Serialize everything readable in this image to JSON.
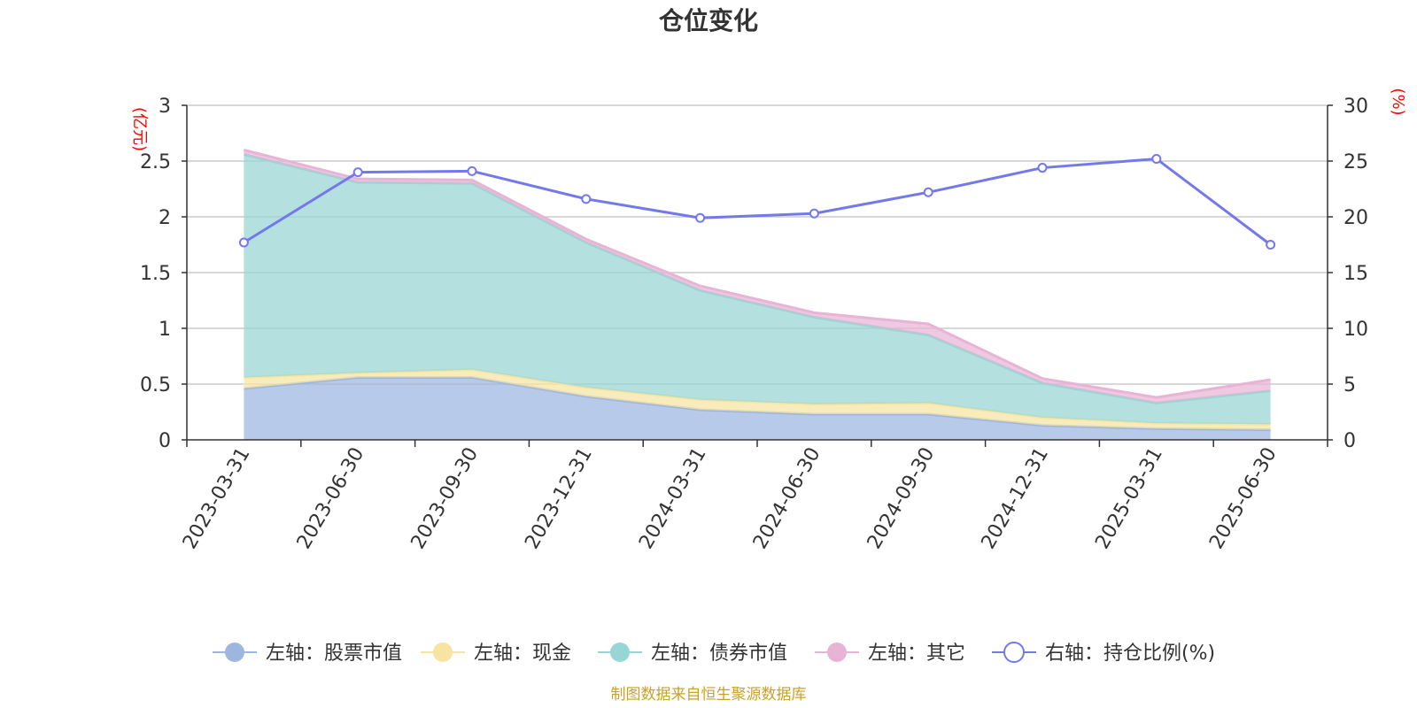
{
  "chart_data": {
    "type": "area",
    "title": "仓位变化",
    "left_axis": {
      "unit": "(亿元)",
      "ylim": [
        0,
        3
      ],
      "ticks": [
        "0",
        "0.5",
        "1",
        "1.5",
        "2",
        "2.5",
        "3"
      ]
    },
    "right_axis": {
      "unit": "(%)",
      "ylim": [
        0,
        30
      ],
      "ticks": [
        "0",
        "5",
        "10",
        "15",
        "20",
        "25",
        "30"
      ]
    },
    "categories": [
      "2023-03-31",
      "2023-06-30",
      "2023-09-30",
      "2023-12-31",
      "2024-03-31",
      "2024-06-30",
      "2024-09-30",
      "2024-12-31",
      "2025-03-31",
      "2025-06-30"
    ],
    "stacked_series": [
      {
        "name": "左轴：股票市值",
        "color": "#9db6e0",
        "values": [
          0.46,
          0.56,
          0.56,
          0.39,
          0.27,
          0.23,
          0.23,
          0.13,
          0.1,
          0.09
        ]
      },
      {
        "name": "左轴：现金",
        "color": "#f7e4a2",
        "values": [
          0.1,
          0.04,
          0.07,
          0.08,
          0.09,
          0.09,
          0.1,
          0.07,
          0.05,
          0.05
        ]
      },
      {
        "name": "左轴：债券市值",
        "color": "#97d6d4",
        "values": [
          2.0,
          1.71,
          1.67,
          1.3,
          0.98,
          0.78,
          0.61,
          0.31,
          0.18,
          0.3
        ]
      },
      {
        "name": "左轴：其它",
        "color": "#e8b4d6",
        "values": [
          0.04,
          0.03,
          0.03,
          0.03,
          0.04,
          0.04,
          0.1,
          0.04,
          0.05,
          0.1
        ]
      }
    ],
    "line_series": {
      "name": "右轴：持仓比例(%)",
      "color": "#7379ec",
      "values": [
        17.7,
        24.0,
        24.1,
        21.6,
        19.9,
        20.3,
        22.2,
        24.4,
        25.2,
        17.5
      ]
    },
    "grid": true,
    "legend_position": "bottom"
  },
  "footer": {
    "source": "制图数据来自恒生聚源数据库"
  }
}
